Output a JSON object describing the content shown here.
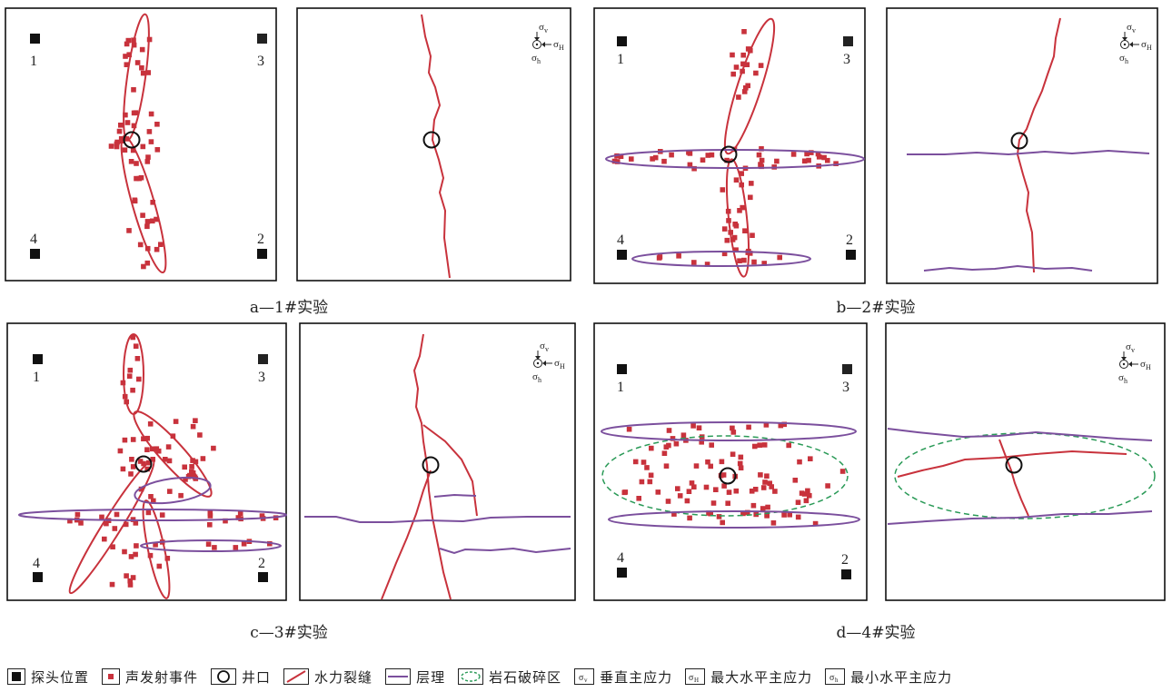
{
  "captions": {
    "a": "a—1#实验",
    "b": "b—2#实验",
    "c": "c—3#实验",
    "d": "d—4#实验"
  },
  "probes": {
    "p1": "1",
    "p2": "2",
    "p3": "3",
    "p4": "4"
  },
  "stress_labels": {
    "sigma": "σ",
    "v": "v",
    "H": "H",
    "h": "h"
  },
  "legend": {
    "probe": "探头位置",
    "ae_event": "声发射事件",
    "well": "井口",
    "fracture": "水力裂缝",
    "bedding": "层理",
    "crushed_zone": "岩石破碎区",
    "sigma_v": "垂直主应力",
    "sigma_H": "最大水平主应力",
    "sigma_h": "最小水平主应力"
  },
  "colors": {
    "fracture": "#c8323c",
    "ae_event": "#c8323c",
    "bedding": "#7b4f9d",
    "crushed_zone": "#2a9a57",
    "probe": "#111111",
    "frame": "#111111"
  }
}
